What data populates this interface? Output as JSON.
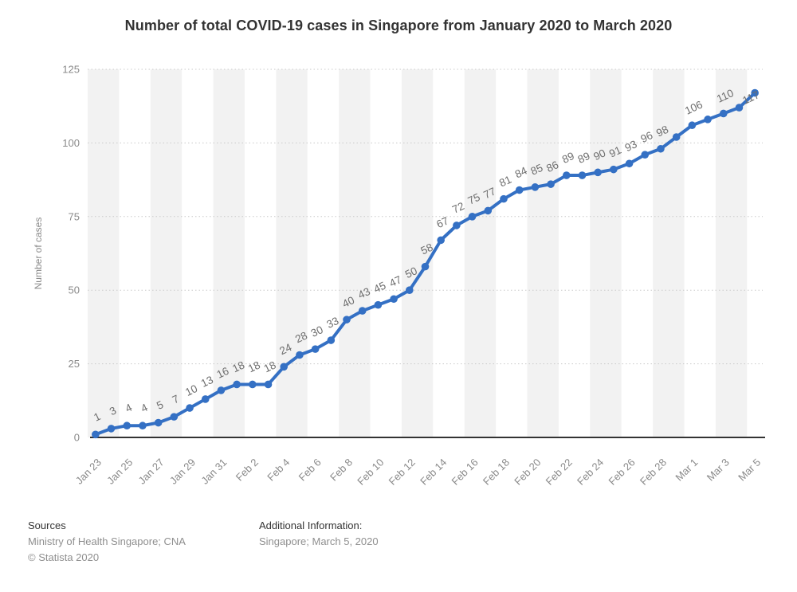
{
  "header": {
    "title": "Number of total COVID-19 cases in Singapore from January 2020 to March 2020"
  },
  "chart_data": {
    "type": "line",
    "title": "Number of total COVID-19 cases in Singapore from January 2020 to March 2020",
    "xlabel": "",
    "ylabel": "Number of cases",
    "ylim": [
      0,
      125
    ],
    "yticks": [
      0,
      25,
      50,
      75,
      100,
      125
    ],
    "x_tick_step": 2,
    "grid": "horizontal-dotted",
    "legend": "none",
    "x": [
      "Jan 23",
      "Jan 24",
      "Jan 25",
      "Jan 26",
      "Jan 27",
      "Jan 28",
      "Jan 29",
      "Jan 30",
      "Jan 31",
      "Feb 1",
      "Feb 2",
      "Feb 3",
      "Feb 4",
      "Feb 5",
      "Feb 6",
      "Feb 7",
      "Feb 8",
      "Feb 9",
      "Feb 10",
      "Feb 11",
      "Feb 12",
      "Feb 13",
      "Feb 14",
      "Feb 15",
      "Feb 16",
      "Feb 17",
      "Feb 18",
      "Feb 19",
      "Feb 20",
      "Feb 21",
      "Feb 22",
      "Feb 23",
      "Feb 24",
      "Feb 25",
      "Feb 26",
      "Feb 27",
      "Feb 28",
      "Feb 29",
      "Mar 1",
      "Mar 2",
      "Mar 3",
      "Mar 4",
      "Mar 5"
    ],
    "values": [
      1,
      3,
      4,
      4,
      5,
      7,
      10,
      13,
      16,
      18,
      18,
      18,
      24,
      28,
      30,
      33,
      40,
      43,
      45,
      47,
      50,
      58,
      67,
      72,
      75,
      77,
      81,
      84,
      85,
      86,
      89,
      89,
      90,
      91,
      93,
      96,
      98,
      102,
      106,
      108,
      110,
      112,
      117
    ],
    "point_labels": [
      "1",
      "3",
      "4",
      "4",
      "5",
      "7",
      "10",
      "13",
      "16",
      "18",
      "18",
      "18",
      "24",
      "28",
      "30",
      "33",
      "40",
      "43",
      "45",
      "47",
      "50",
      "58",
      "67",
      "72",
      "75",
      "77",
      "81",
      "84",
      "85",
      "86",
      "89",
      "89",
      "90",
      "91",
      "93",
      "96",
      "98",
      null,
      "106",
      null,
      "110",
      null,
      "117"
    ]
  },
  "colors": {
    "line": "#3470c4",
    "stripe": "#f2f2f2",
    "grid": "#c9c9c9",
    "axis_line": "#333333",
    "axis_text": "#8a8a8a",
    "data_label": "#6e6e6e",
    "title_text": "#333333"
  },
  "footer": {
    "sources_heading": "Sources",
    "sources_line": "Ministry of Health Singapore; CNA",
    "copyright": "© Statista 2020",
    "additional_heading": "Additional Information:",
    "additional_line": "Singapore; March 5, 2020"
  }
}
